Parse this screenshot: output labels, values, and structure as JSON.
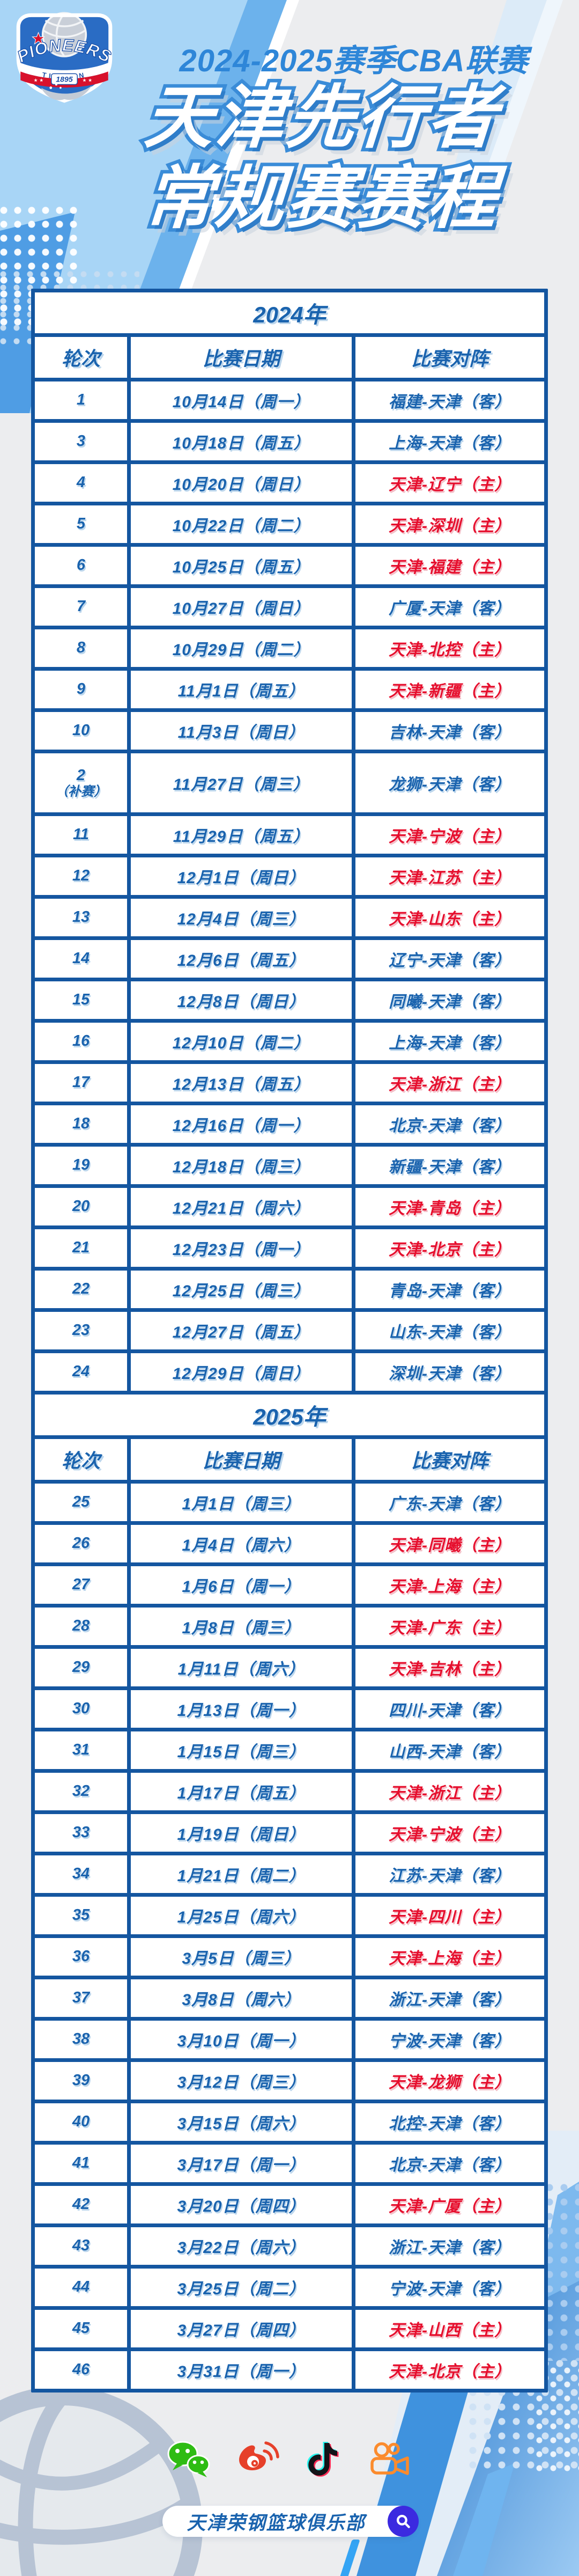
{
  "header": {
    "league_title": "2024-2025赛季CBA联赛",
    "title_line1": "天津先行者",
    "title_line2": "常规赛赛程",
    "logo": {
      "team_en": "PIONEERS",
      "city": "TIANJIN",
      "founded": "1895"
    }
  },
  "table": {
    "columns": [
      "轮次",
      "比赛日期",
      "比赛对阵"
    ],
    "sections": [
      {
        "year": "2024年",
        "rows": [
          {
            "round": "1",
            "note": "",
            "date": "10月14日（周一）",
            "match": "福建-天津（客）",
            "home": false
          },
          {
            "round": "3",
            "note": "",
            "date": "10月18日（周五）",
            "match": "上海-天津（客）",
            "home": false
          },
          {
            "round": "4",
            "note": "",
            "date": "10月20日（周日）",
            "match": "天津-辽宁（主）",
            "home": true
          },
          {
            "round": "5",
            "note": "",
            "date": "10月22日（周二）",
            "match": "天津-深圳（主）",
            "home": true
          },
          {
            "round": "6",
            "note": "",
            "date": "10月25日（周五）",
            "match": "天津-福建（主）",
            "home": true
          },
          {
            "round": "7",
            "note": "",
            "date": "10月27日（周日）",
            "match": "广厦-天津（客）",
            "home": false
          },
          {
            "round": "8",
            "note": "",
            "date": "10月29日（周二）",
            "match": "天津-北控（主）",
            "home": true
          },
          {
            "round": "9",
            "note": "",
            "date": "11月1日（周五）",
            "match": "天津-新疆（主）",
            "home": true
          },
          {
            "round": "10",
            "note": "",
            "date": "11月3日（周日）",
            "match": "吉林-天津（客）",
            "home": false
          },
          {
            "round": "2",
            "note": "（补赛）",
            "date": "11月27日（周三）",
            "match": "龙狮-天津（客）",
            "home": false
          },
          {
            "round": "11",
            "note": "",
            "date": "11月29日（周五）",
            "match": "天津-宁波（主）",
            "home": true
          },
          {
            "round": "12",
            "note": "",
            "date": "12月1日（周日）",
            "match": "天津-江苏（主）",
            "home": true
          },
          {
            "round": "13",
            "note": "",
            "date": "12月4日（周三）",
            "match": "天津-山东（主）",
            "home": true
          },
          {
            "round": "14",
            "note": "",
            "date": "12月6日（周五）",
            "match": "辽宁-天津（客）",
            "home": false
          },
          {
            "round": "15",
            "note": "",
            "date": "12月8日（周日）",
            "match": "同曦-天津（客）",
            "home": false
          },
          {
            "round": "16",
            "note": "",
            "date": "12月10日（周二）",
            "match": "上海-天津（客）",
            "home": false
          },
          {
            "round": "17",
            "note": "",
            "date": "12月13日（周五）",
            "match": "天津-浙江（主）",
            "home": true
          },
          {
            "round": "18",
            "note": "",
            "date": "12月16日（周一）",
            "match": "北京-天津（客）",
            "home": false
          },
          {
            "round": "19",
            "note": "",
            "date": "12月18日（周三）",
            "match": "新疆-天津（客）",
            "home": false
          },
          {
            "round": "20",
            "note": "",
            "date": "12月21日（周六）",
            "match": "天津-青岛（主）",
            "home": true
          },
          {
            "round": "21",
            "note": "",
            "date": "12月23日（周一）",
            "match": "天津-北京（主）",
            "home": true
          },
          {
            "round": "22",
            "note": "",
            "date": "12月25日（周三）",
            "match": "青岛-天津（客）",
            "home": false
          },
          {
            "round": "23",
            "note": "",
            "date": "12月27日（周五）",
            "match": "山东-天津（客）",
            "home": false
          },
          {
            "round": "24",
            "note": "",
            "date": "12月29日（周日）",
            "match": "深圳-天津（客）",
            "home": false
          }
        ]
      },
      {
        "year": "2025年",
        "rows": [
          {
            "round": "25",
            "note": "",
            "date": "1月1日（周三）",
            "match": "广东-天津（客）",
            "home": false
          },
          {
            "round": "26",
            "note": "",
            "date": "1月4日（周六）",
            "match": "天津-同曦（主）",
            "home": true
          },
          {
            "round": "27",
            "note": "",
            "date": "1月6日（周一）",
            "match": "天津-上海（主）",
            "home": true
          },
          {
            "round": "28",
            "note": "",
            "date": "1月8日（周三）",
            "match": "天津-广东（主）",
            "home": true
          },
          {
            "round": "29",
            "note": "",
            "date": "1月11日（周六）",
            "match": "天津-吉林（主）",
            "home": true
          },
          {
            "round": "30",
            "note": "",
            "date": "1月13日（周一）",
            "match": "四川-天津（客）",
            "home": false
          },
          {
            "round": "31",
            "note": "",
            "date": "1月15日（周三）",
            "match": "山西-天津（客）",
            "home": false
          },
          {
            "round": "32",
            "note": "",
            "date": "1月17日（周五）",
            "match": "天津-浙江（主）",
            "home": true
          },
          {
            "round": "33",
            "note": "",
            "date": "1月19日（周日）",
            "match": "天津-宁波（主）",
            "home": true
          },
          {
            "round": "34",
            "note": "",
            "date": "1月21日（周二）",
            "match": "江苏-天津（客）",
            "home": false
          },
          {
            "round": "35",
            "note": "",
            "date": "1月25日（周六）",
            "match": "天津-四川（主）",
            "home": true
          },
          {
            "round": "36",
            "note": "",
            "date": "3月5日（周三）",
            "match": "天津-上海（主）",
            "home": true
          },
          {
            "round": "37",
            "note": "",
            "date": "3月8日（周六）",
            "match": "浙江-天津（客）",
            "home": false
          },
          {
            "round": "38",
            "note": "",
            "date": "3月10日（周一）",
            "match": "宁波-天津（客）",
            "home": false
          },
          {
            "round": "39",
            "note": "",
            "date": "3月12日（周三）",
            "match": "天津-龙狮（主）",
            "home": true
          },
          {
            "round": "40",
            "note": "",
            "date": "3月15日（周六）",
            "match": "北控-天津（客）",
            "home": false
          },
          {
            "round": "41",
            "note": "",
            "date": "3月17日（周一）",
            "match": "北京-天津（客）",
            "home": false
          },
          {
            "round": "42",
            "note": "",
            "date": "3月20日（周四）",
            "match": "天津-广厦（主）",
            "home": true
          },
          {
            "round": "43",
            "note": "",
            "date": "3月22日（周六）",
            "match": "浙江-天津（客）",
            "home": false
          },
          {
            "round": "44",
            "note": "",
            "date": "3月25日（周二）",
            "match": "宁波-天津（客）",
            "home": false
          },
          {
            "round": "45",
            "note": "",
            "date": "3月27日（周四）",
            "match": "天津-山西（主）",
            "home": true
          },
          {
            "round": "46",
            "note": "",
            "date": "3月31日（周一）",
            "match": "天津-北京（主）",
            "home": true
          }
        ]
      }
    ]
  },
  "footer": {
    "club_name": "天津荣钢篮球俱乐部",
    "social_icons": [
      "wechat-icon",
      "weibo-icon",
      "douyin-icon",
      "kuaishou-icon"
    ]
  },
  "colors": {
    "table_border_blue": "#1456a0",
    "text_blue": "#1a63ae",
    "text_red": "#e60e2d",
    "title_outline_blue": "#3a8cd8",
    "subtitle_blue": "#2e86d8",
    "background": "#ecedef",
    "search_button": "#3b2ae0",
    "wechat_green": "#2ebc13",
    "weibo_red": "#e6402a",
    "kuaishou_orange": "#fb8b2d"
  }
}
